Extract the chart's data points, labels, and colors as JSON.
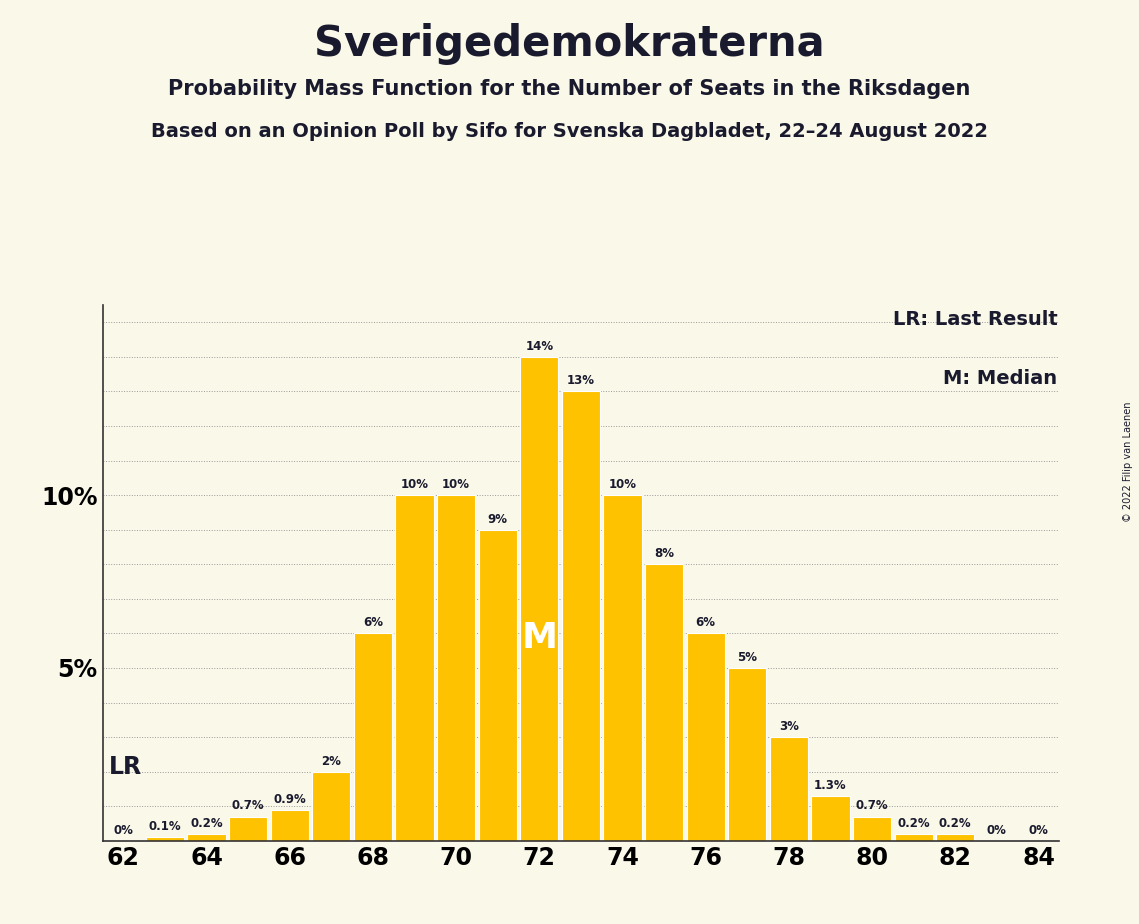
{
  "title": "Sverigedemokraterna",
  "subtitle1": "Probability Mass Function for the Number of Seats in the Riksdagen",
  "subtitle2": "Based on an Opinion Poll by Sifo for Svenska Dagbladet, 22–24 August 2022",
  "copyright": "© 2022 Filip van Laenen",
  "legend_lr": "LR: Last Result",
  "legend_m": "M: Median",
  "seats": [
    62,
    63,
    64,
    65,
    66,
    67,
    68,
    69,
    70,
    71,
    72,
    73,
    74,
    75,
    76,
    77,
    78,
    79,
    80,
    81,
    82,
    83,
    84
  ],
  "probabilities": [
    0.0,
    0.1,
    0.2,
    0.7,
    0.9,
    2.0,
    6.0,
    10.0,
    10.0,
    9.0,
    14.0,
    13.0,
    10.0,
    8.0,
    6.0,
    5.0,
    3.0,
    1.3,
    0.7,
    0.2,
    0.2,
    0.0,
    0.0
  ],
  "bar_color": "#FFC200",
  "median_seat": 72,
  "lr_seat": 63,
  "background_color": "#FAF8E8",
  "text_color": "#1a1a2e",
  "xticks": [
    62,
    64,
    66,
    68,
    70,
    72,
    74,
    76,
    78,
    80,
    82,
    84
  ],
  "ylim": [
    0,
    15.5
  ],
  "xlim": [
    61.5,
    84.5
  ]
}
